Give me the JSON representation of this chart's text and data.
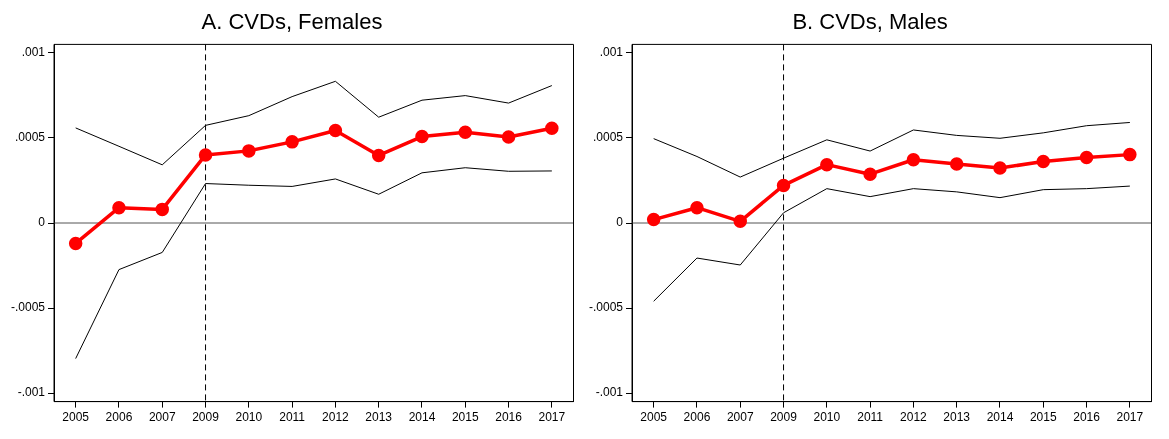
{
  "chart_data": [
    {
      "type": "line",
      "title": "A. CVDs, Females",
      "categories": [
        "2005",
        "2006",
        "2007",
        "2009",
        "2010",
        "2011",
        "2012",
        "2013",
        "2014",
        "2015",
        "2016",
        "2017"
      ],
      "series": [
        {
          "color": "#ff0000",
          "marker": "circle",
          "values": [
            -0.00012,
            9e-05,
            8e-05,
            0.0004,
            0.000424,
            0.000477,
            0.000544,
            0.000397,
            0.000508,
            0.000534,
            0.000506,
            0.000557
          ]
        },
        {
          "color": "#000000",
          "marker": "none",
          "values": [
            0.000559,
            0.000451,
            0.000342,
            0.000574,
            0.000631,
            0.000743,
            0.000833,
            0.000622,
            0.000722,
            0.000749,
            0.000705,
            0.000808
          ]
        },
        {
          "color": "#000000",
          "marker": "none",
          "values": [
            -0.000797,
            -0.000274,
            -0.000173,
            0.000232,
            0.000222,
            0.000215,
            0.000259,
            0.000169,
            0.000295,
            0.000325,
            0.000304,
            0.000306
          ]
        }
      ],
      "ylim": [
        -0.00105,
        0.00105
      ],
      "yticks": [
        {
          "value": -0.001,
          "label": "-.001"
        },
        {
          "value": -0.0005,
          "label": "-.0005"
        },
        0,
        {
          "value": 0.0005,
          "label": ".0005"
        },
        {
          "value": 0.001,
          "label": ".001"
        }
      ],
      "ref_lines": [
        {
          "axis": "y",
          "value": 0,
          "color": "#555555",
          "line_style": "solid"
        },
        {
          "axis": "x",
          "value": "2009",
          "color": "#000000",
          "line_style": "dashed"
        }
      ],
      "grid": false,
      "legend": false
    },
    {
      "type": "line",
      "title": "B. CVDs, Males",
      "categories": [
        "2005",
        "2006",
        "2007",
        "2009",
        "2010",
        "2011",
        "2012",
        "2013",
        "2014",
        "2015",
        "2016",
        "2017"
      ],
      "series": [
        {
          "color": "#ff0000",
          "marker": "circle",
          "values": [
            2e-05,
            9e-05,
            1e-05,
            0.000221,
            0.000343,
            0.000287,
            0.000372,
            0.000347,
            0.000323,
            0.000362,
            0.000385,
            0.000402
          ]
        },
        {
          "color": "#000000",
          "marker": "none",
          "values": [
            0.000496,
            0.000391,
            0.00027,
            0.000381,
            0.000489,
            0.000423,
            0.000547,
            0.000515,
            0.000498,
            0.00053,
            0.000572,
            0.000591
          ]
        },
        {
          "color": "#000000",
          "marker": "none",
          "values": [
            -0.00046,
            -0.000206,
            -0.000247,
            6e-05,
            0.000202,
            0.000155,
            0.000202,
            0.000183,
            0.000149,
            0.000196,
            0.000202,
            0.000217
          ]
        }
      ],
      "ylim": [
        -0.00105,
        0.00105
      ],
      "yticks": [
        {
          "value": -0.001,
          "label": "-.001"
        },
        {
          "value": -0.0005,
          "label": "-.0005"
        },
        0,
        {
          "value": 0.0005,
          "label": ".0005"
        },
        {
          "value": 0.001,
          "label": ".001"
        }
      ],
      "ref_lines": [
        {
          "axis": "y",
          "value": 0,
          "color": "#555555",
          "line_style": "solid"
        },
        {
          "axis": "x",
          "value": "2009",
          "color": "#000000",
          "line_style": "dashed"
        }
      ],
      "grid": false,
      "legend": false
    }
  ]
}
